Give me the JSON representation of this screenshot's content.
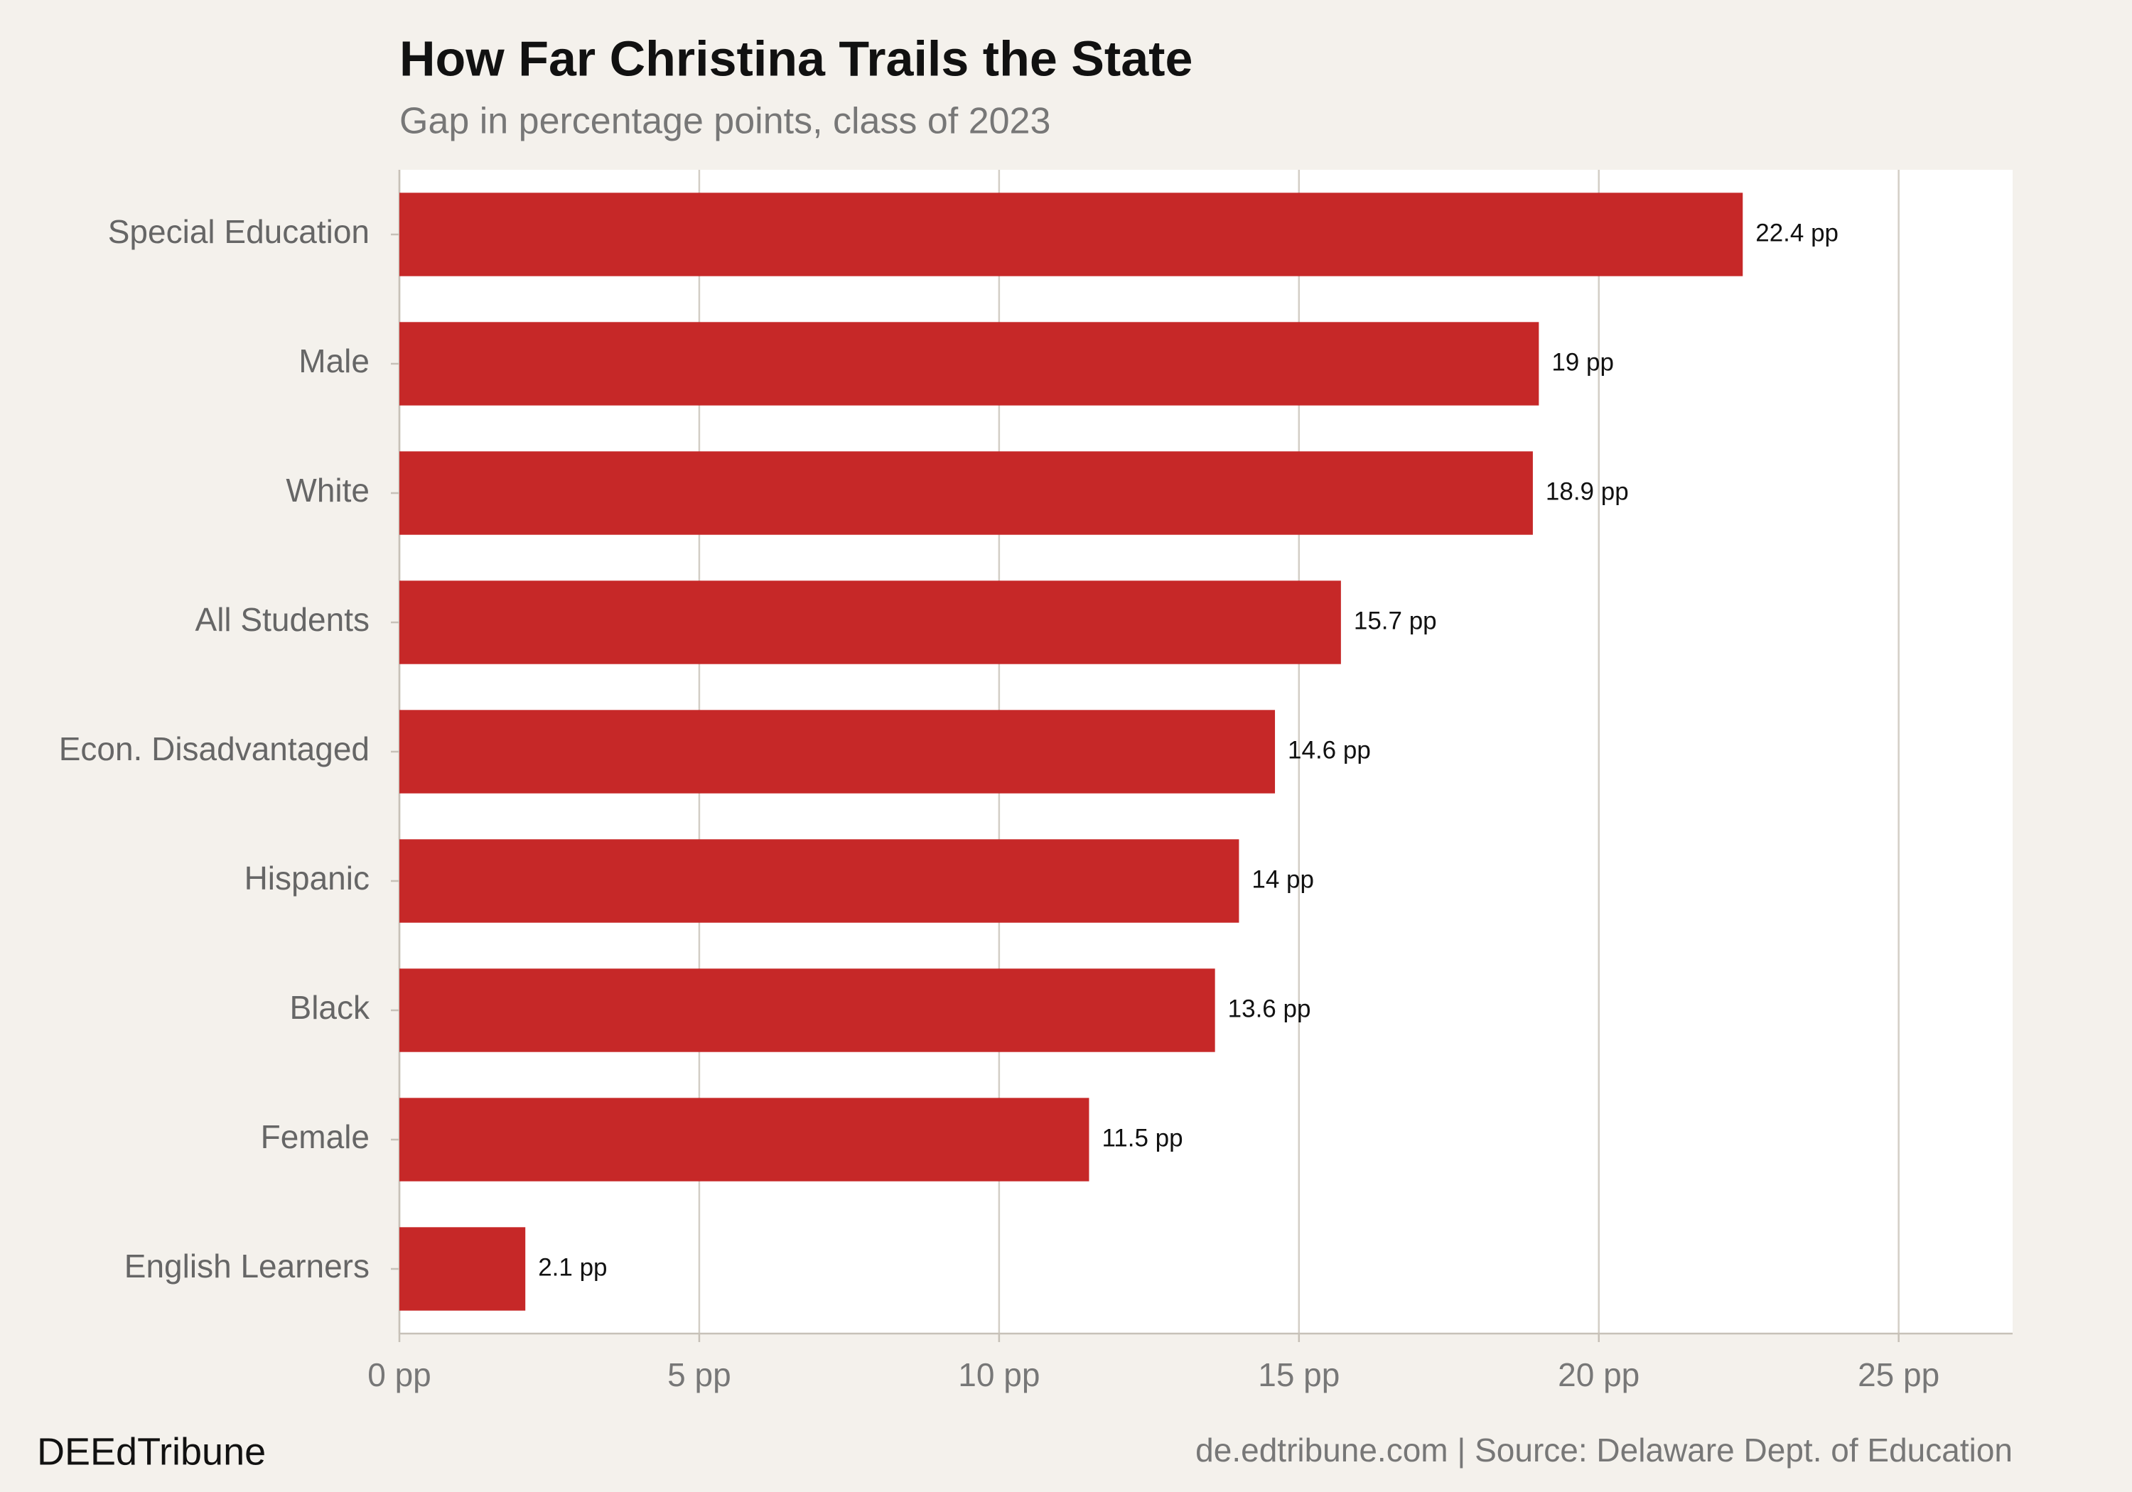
{
  "chart_data": {
    "type": "bar",
    "orientation": "horizontal",
    "title": "How Far Christina Trails the State",
    "subtitle": "Gap in percentage points, class of 2023",
    "categories": [
      "Special Education",
      "Male",
      "White",
      "All Students",
      "Econ. Disadvantaged",
      "Hispanic",
      "Black",
      "Female",
      "English Learners"
    ],
    "values": [
      22.4,
      19,
      18.9,
      15.7,
      14.6,
      14,
      13.6,
      11.5,
      2.1
    ],
    "value_labels": [
      "22.4 pp",
      "19 pp",
      "18.9 pp",
      "15.7 pp",
      "14.6 pp",
      "14 pp",
      "13.6 pp",
      "11.5 pp",
      "2.1 pp"
    ],
    "color": "#c62828",
    "xlim": [
      0,
      26.9
    ],
    "xticks": [
      {
        "value": 0,
        "label": "0 pp"
      },
      {
        "value": 5,
        "label": "5 pp"
      },
      {
        "value": 10,
        "label": "10 pp"
      },
      {
        "value": 15,
        "label": "15 pp"
      },
      {
        "value": 20,
        "label": "20 pp"
      },
      {
        "value": 25,
        "label": "25 pp"
      }
    ],
    "grid": true,
    "brand": "DEEdTribune",
    "source": "de.edtribune.com | Source: Delaware Dept. of Education"
  }
}
